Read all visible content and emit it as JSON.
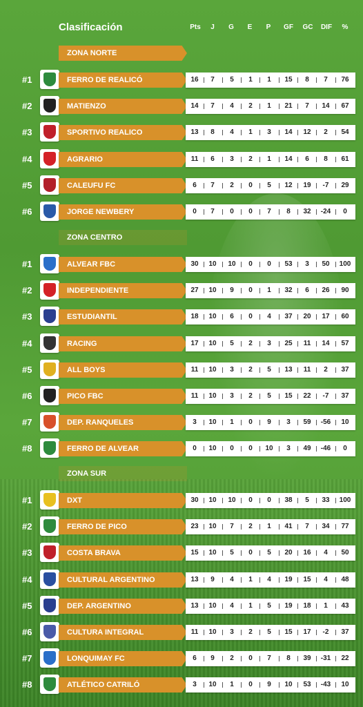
{
  "header": {
    "title": "Clasificación",
    "columns": [
      "Pts",
      "J",
      "G",
      "E",
      "P",
      "GF",
      "GC",
      "DIF",
      "%"
    ]
  },
  "colors": {
    "accent": "#d8912a",
    "background": "#4f9a33",
    "stats_bg": "#ffffff"
  },
  "zones": [
    {
      "name": "ZONA NORTE",
      "teams": [
        {
          "rank": "#1",
          "name": "FERRO DE REALICÓ",
          "crest_icon": "ferro-realico-crest-icon",
          "crest_color": "#2e8b3d",
          "stats": [
            "16",
            "7",
            "5",
            "1",
            "1",
            "15",
            "8",
            "7",
            "76"
          ]
        },
        {
          "rank": "#2",
          "name": "MATIENZO",
          "crest_icon": "matienzo-crest-icon",
          "crest_color": "#222222",
          "stats": [
            "14",
            "7",
            "4",
            "2",
            "1",
            "21",
            "7",
            "14",
            "67"
          ]
        },
        {
          "rank": "#3",
          "name": "SPORTIVO REALICO",
          "crest_icon": "sportivo-realico-crest-icon",
          "crest_color": "#c0202a",
          "stats": [
            "13",
            "8",
            "4",
            "1",
            "3",
            "14",
            "12",
            "2",
            "54"
          ]
        },
        {
          "rank": "#4",
          "name": "AGRARIO",
          "crest_icon": "agrario-crest-icon",
          "crest_color": "#d42127",
          "stats": [
            "11",
            "6",
            "3",
            "2",
            "1",
            "14",
            "6",
            "8",
            "61"
          ]
        },
        {
          "rank": "#5",
          "name": "CALEUFU FC",
          "crest_icon": "caleufu-crest-icon",
          "crest_color": "#b3202a",
          "stats": [
            "6",
            "7",
            "2",
            "0",
            "5",
            "12",
            "19",
            "-7",
            "29"
          ]
        },
        {
          "rank": "#6",
          "name": "JORGE NEWBERY",
          "crest_icon": "jorge-newbery-crest-icon",
          "crest_color": "#2a5aa8",
          "stats": [
            "0",
            "7",
            "0",
            "0",
            "7",
            "8",
            "32",
            "-24",
            "0"
          ]
        }
      ]
    },
    {
      "name": "ZONA CENTRO",
      "teams": [
        {
          "rank": "#1",
          "name": "ALVEAR FBC",
          "crest_icon": "alvear-fbc-crest-icon",
          "crest_color": "#2a6fc9",
          "stats": [
            "30",
            "10",
            "10",
            "0",
            "0",
            "53",
            "3",
            "50",
            "100"
          ]
        },
        {
          "rank": "#2",
          "name": "INDEPENDIENTE",
          "crest_icon": "independiente-crest-icon",
          "crest_color": "#d42127",
          "stats": [
            "27",
            "10",
            "9",
            "0",
            "1",
            "32",
            "6",
            "26",
            "90"
          ]
        },
        {
          "rank": "#3",
          "name": "ESTUDIANTIL",
          "crest_icon": "estudiantil-crest-icon",
          "crest_color": "#2a3f8f",
          "stats": [
            "18",
            "10",
            "6",
            "0",
            "4",
            "37",
            "20",
            "17",
            "60"
          ]
        },
        {
          "rank": "#4",
          "name": "RACING",
          "crest_icon": "racing-crest-icon",
          "crest_color": "#333333",
          "stats": [
            "17",
            "10",
            "5",
            "2",
            "3",
            "25",
            "11",
            "14",
            "57"
          ]
        },
        {
          "rank": "#5",
          "name": "ALL BOYS",
          "crest_icon": "all-boys-crest-icon",
          "crest_color": "#e0b020",
          "stats": [
            "11",
            "10",
            "3",
            "2",
            "5",
            "13",
            "11",
            "2",
            "37"
          ]
        },
        {
          "rank": "#6",
          "name": "PICO FBC",
          "crest_icon": "pico-fbc-crest-icon",
          "crest_color": "#222222",
          "stats": [
            "11",
            "10",
            "3",
            "2",
            "5",
            "15",
            "22",
            "-7",
            "37"
          ]
        },
        {
          "rank": "#7",
          "name": "DEP. RANQUELES",
          "crest_icon": "ranqueles-crest-icon",
          "crest_color": "#d8502a",
          "stats": [
            "3",
            "10",
            "1",
            "0",
            "9",
            "3",
            "59",
            "-56",
            "10"
          ]
        },
        {
          "rank": "#8",
          "name": "FERRO DE ALVEAR",
          "crest_icon": "ferro-alvear-crest-icon",
          "crest_color": "#2e8b3d",
          "stats": [
            "0",
            "10",
            "0",
            "0",
            "10",
            "3",
            "49",
            "-46",
            "0"
          ]
        }
      ]
    },
    {
      "name": "ZONA SUR",
      "teams": [
        {
          "rank": "#1",
          "name": "DXT",
          "crest_icon": "dxt-crest-icon",
          "crest_color": "#e8c020",
          "stats": [
            "30",
            "10",
            "10",
            "0",
            "0",
            "38",
            "5",
            "33",
            "100"
          ]
        },
        {
          "rank": "#2",
          "name": "FERRO DE PICO",
          "crest_icon": "ferro-pico-crest-icon",
          "crest_color": "#2e8b3d",
          "stats": [
            "23",
            "10",
            "7",
            "2",
            "1",
            "41",
            "7",
            "34",
            "77"
          ]
        },
        {
          "rank": "#3",
          "name": "COSTA BRAVA",
          "crest_icon": "costa-brava-crest-icon",
          "crest_color": "#c0202a",
          "stats": [
            "15",
            "10",
            "5",
            "0",
            "5",
            "20",
            "16",
            "4",
            "50"
          ]
        },
        {
          "rank": "#4",
          "name": "CULTURAL ARGENTINO",
          "crest_icon": "cultural-argentino-crest-icon",
          "crest_color": "#2a4fa0",
          "stats": [
            "13",
            "9",
            "4",
            "1",
            "4",
            "19",
            "15",
            "4",
            "48"
          ]
        },
        {
          "rank": "#5",
          "name": "DEP. ARGENTINO",
          "crest_icon": "dep-argentino-crest-icon",
          "crest_color": "#2a3f8f",
          "stats": [
            "13",
            "10",
            "4",
            "1",
            "5",
            "19",
            "18",
            "1",
            "43"
          ]
        },
        {
          "rank": "#6",
          "name": "CULTURA INTEGRAL",
          "crest_icon": "cultura-integral-crest-icon",
          "crest_color": "#4a5aa8",
          "stats": [
            "11",
            "10",
            "3",
            "2",
            "5",
            "15",
            "17",
            "-2",
            "37"
          ]
        },
        {
          "rank": "#7",
          "name": "LONQUIMAY FC",
          "crest_icon": "lonquimay-crest-icon",
          "crest_color": "#2a6fc9",
          "stats": [
            "6",
            "9",
            "2",
            "0",
            "7",
            "8",
            "39",
            "-31",
            "22"
          ]
        },
        {
          "rank": "#8",
          "name": "ATLÉTICO CATRILÓ",
          "crest_icon": "catrilo-crest-icon",
          "crest_color": "#2e8b3d",
          "stats": [
            "3",
            "10",
            "1",
            "0",
            "9",
            "10",
            "53",
            "-43",
            "10"
          ]
        }
      ]
    }
  ]
}
